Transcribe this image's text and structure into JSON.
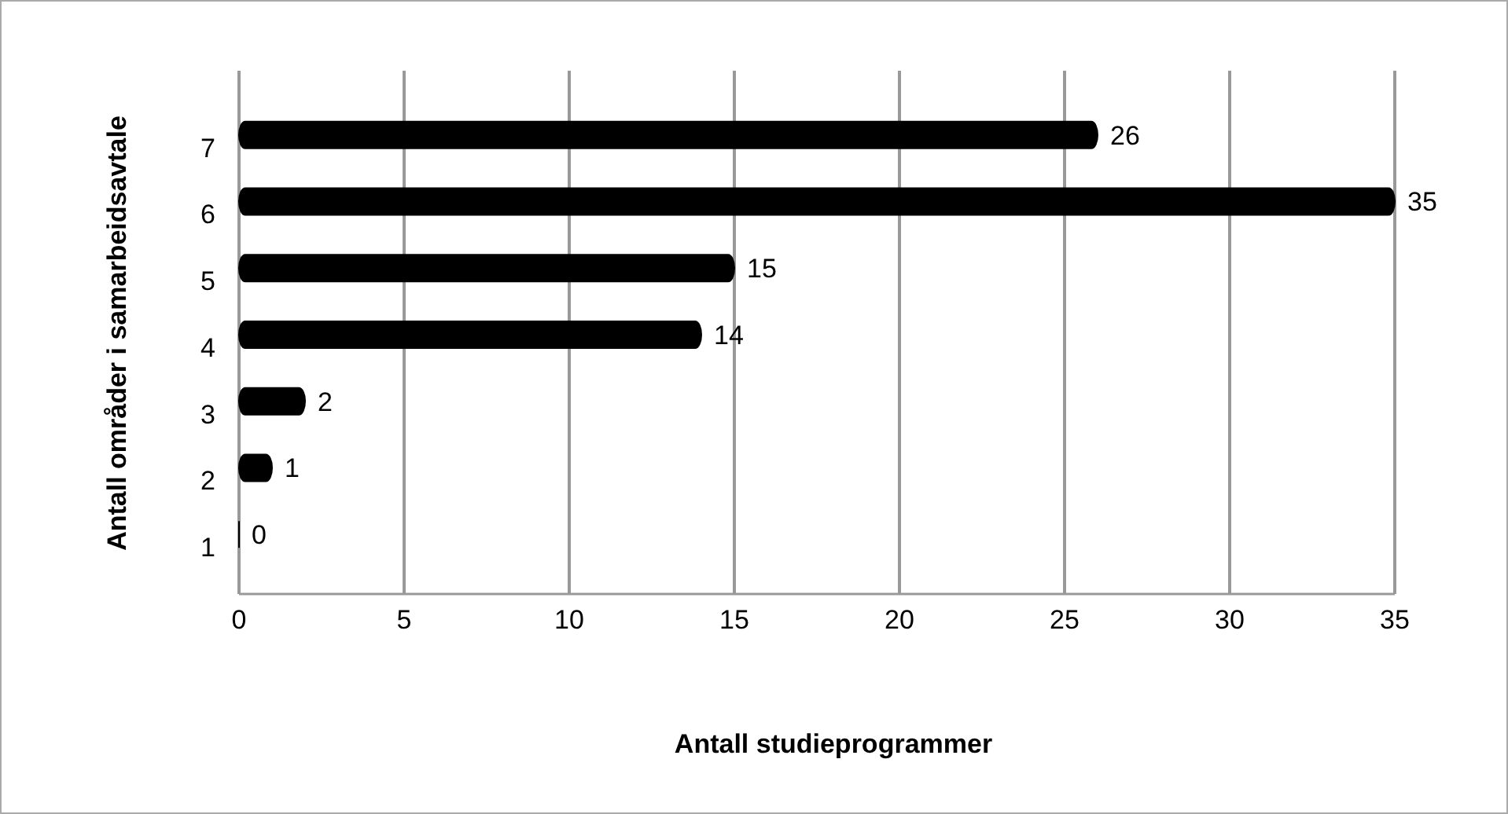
{
  "chart_data": {
    "type": "bar",
    "orientation": "horizontal",
    "categories": [
      "7",
      "6",
      "5",
      "4",
      "3",
      "2",
      "1"
    ],
    "values": [
      26,
      35,
      15,
      14,
      2,
      1,
      0
    ],
    "color": "#000000",
    "xlim": [
      0,
      35
    ],
    "xticks": [
      0,
      5,
      10,
      15,
      20,
      25,
      30,
      35
    ],
    "grid": "x",
    "data_labels": true,
    "xlabel": "Antall studieprogrammer",
    "ylabel": "Antall områder i samarbeidsavtale"
  }
}
